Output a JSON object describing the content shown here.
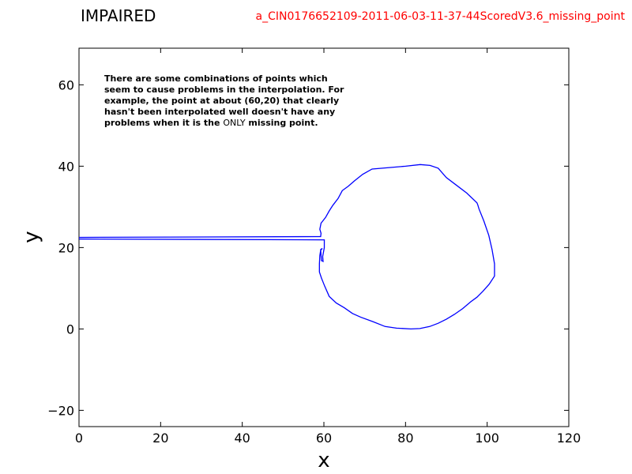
{
  "title_left": "IMPAIRED",
  "title_right": "a_CIN0176652109-2011-06-03-11-37-44ScoredV3.6_missing_point",
  "colors": {
    "line": "#0000ff",
    "title_right": "#ff0000",
    "axes": "#000000"
  },
  "annotation": {
    "lines": [
      "There are some combinations of points which",
      "seem to cause problems in the interpolation. For",
      "example, the point at about (60,20) that clearly",
      "hasn't been interpolated well doesn't have any"
    ],
    "last_line": {
      "prefix": "problems when it is the ",
      "emphasis": "ONLY",
      "suffix": " missing point."
    }
  },
  "chart_data": {
    "type": "line",
    "xlabel": "x",
    "ylabel": "y",
    "xlim": [
      0,
      120
    ],
    "ylim": [
      -24,
      69
    ],
    "x_ticks": [
      0,
      20,
      40,
      60,
      80,
      100,
      120
    ],
    "y_ticks": [
      -20,
      0,
      20,
      40,
      60
    ],
    "grid": false,
    "series": [
      {
        "points": [
          [
            0,
            22.5
          ],
          [
            59.2,
            22.7
          ],
          [
            59.3,
            23.5
          ],
          [
            59.0,
            24.5
          ],
          [
            59.3,
            26.0
          ],
          [
            60.4,
            27.4
          ],
          [
            61.3,
            29.0
          ],
          [
            62.2,
            30.4
          ],
          [
            63.5,
            32.1
          ],
          [
            64.5,
            34.0
          ],
          [
            66.0,
            35.1
          ],
          [
            67.5,
            36.4
          ],
          [
            69.5,
            38.0
          ],
          [
            71.8,
            39.3
          ],
          [
            80.0,
            40.0
          ],
          [
            83.6,
            40.4
          ],
          [
            86.0,
            40.2
          ],
          [
            88.0,
            39.5
          ],
          [
            90.0,
            37.2
          ],
          [
            92.5,
            35.3
          ],
          [
            95.0,
            33.4
          ],
          [
            97.5,
            31.0
          ],
          [
            97.7,
            30.5
          ],
          [
            98.0,
            29.5
          ],
          [
            99.2,
            26.5
          ],
          [
            100.4,
            23.0
          ],
          [
            101.2,
            19.5
          ],
          [
            101.8,
            16.0
          ],
          [
            101.8,
            13.0
          ],
          [
            100.5,
            11.0
          ],
          [
            99.0,
            9.3
          ],
          [
            97.5,
            7.8
          ],
          [
            96.0,
            6.7
          ],
          [
            94.0,
            5.0
          ],
          [
            92.0,
            3.6
          ],
          [
            90.0,
            2.4
          ],
          [
            88.0,
            1.4
          ],
          [
            85.9,
            0.6
          ],
          [
            83.5,
            0.1
          ],
          [
            81.3,
            0.0
          ],
          [
            77.8,
            0.2
          ],
          [
            75.0,
            0.6
          ],
          [
            72.0,
            1.8
          ],
          [
            69.0,
            2.9
          ],
          [
            67.0,
            3.8
          ],
          [
            65.0,
            5.2
          ],
          [
            63.0,
            6.4
          ],
          [
            61.3,
            8.0
          ],
          [
            60.2,
            10.5
          ],
          [
            59.4,
            12.5
          ],
          [
            58.9,
            14.0
          ],
          [
            58.9,
            16.0
          ],
          [
            59.0,
            18.0
          ],
          [
            59.2,
            19.3
          ],
          [
            59.6,
            19.8
          ],
          [
            59.2,
            19.5
          ],
          [
            59.4,
            16.8
          ],
          [
            59.8,
            16.6
          ],
          [
            59.7,
            17.8
          ],
          [
            60.1,
            20.0
          ],
          [
            60.1,
            21.9
          ],
          [
            0,
            22.1
          ]
        ]
      }
    ]
  }
}
